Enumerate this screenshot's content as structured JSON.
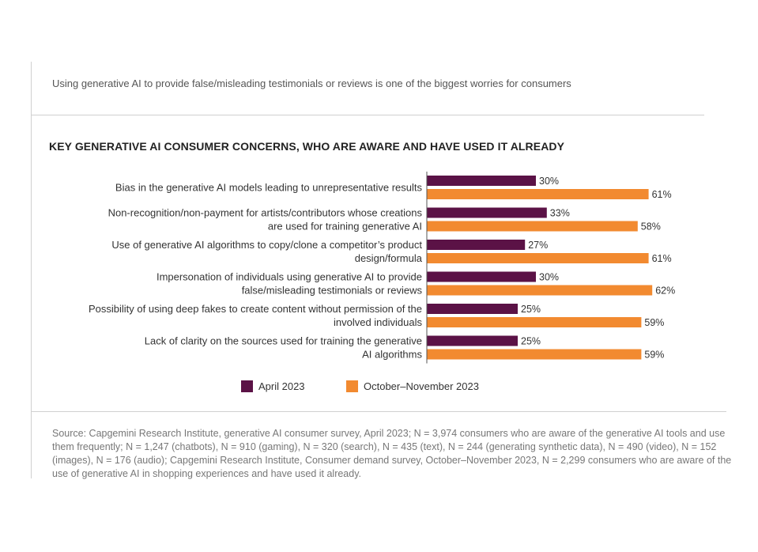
{
  "intro_text": "Using generative AI to provide false/misleading testimonials or reviews is one of the biggest worries for consumers",
  "chart_data": {
    "type": "bar",
    "orientation": "horizontal",
    "title": "KEY GENERATIVE AI CONSUMER CONCERNS, WHO ARE AWARE AND HAVE USED IT ALREADY",
    "categories": [
      [
        "Bias in the generative AI models leading to unrepresentative results"
      ],
      [
        "Non-recognition/non-payment for artists/contributors whose creations",
        "are used for training generative AI"
      ],
      [
        "Use of generative AI algorithms to copy/clone a competitor’s product",
        "design/formula"
      ],
      [
        "Impersonation of individuals using generative AI to provide",
        "false/misleading testimonials or reviews"
      ],
      [
        "Possibility of using deep fakes to create content without permission of the",
        "involved individuals"
      ],
      [
        "Lack of clarity on the sources used for training the generative",
        "AI algorithms"
      ]
    ],
    "series": [
      {
        "name": "April 2023",
        "color": "#5b1246",
        "values": [
          30,
          33,
          27,
          30,
          25,
          25
        ],
        "labels": [
          "30%",
          "33%",
          "27%",
          "30%",
          "25%",
          "25%"
        ]
      },
      {
        "name": "October–November 2023",
        "color": "#f28a30",
        "values": [
          61,
          58,
          61,
          62,
          59,
          59
        ],
        "labels": [
          "61%",
          "58%",
          "61%",
          "62%",
          "59%",
          "59%"
        ]
      }
    ],
    "xlim": [
      0,
      100
    ],
    "unit": "%",
    "grid": false,
    "legend_position": "bottom"
  },
  "source_text": "Source: Capgemini Research Institute, generative AI consumer survey, April 2023; N = 3,974 consumers who are aware of the generative AI tools and use them frequently; N = 1,247 (chatbots), N = 910 (gaming), N = 320 (search), N = 435 (text), N = 244 (generating synthetic data), N = 490 (video), N = 152 (images), N = 176 (audio); Capgemini Research Institute, Consumer demand survey, October–November 2023, N = 2,299 consumers who are aware of the use of generative AI in shopping experiences and have used it already."
}
